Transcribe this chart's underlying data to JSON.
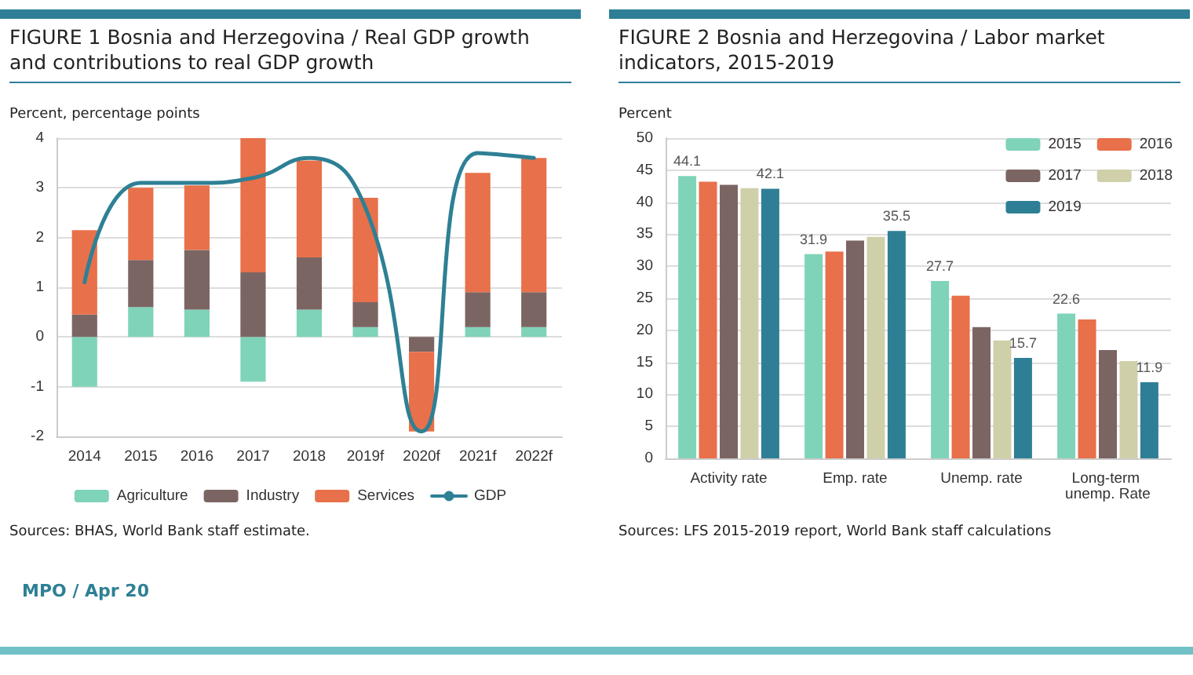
{
  "chart_data": [
    {
      "type": "bar",
      "title": "FIGURE 1  Bosnia and Herzegovina / Real GDP growth and contributions to real GDP growth",
      "ylabel": "Percent, percentage points",
      "categories": [
        "2014",
        "2015",
        "2016",
        "2017",
        "2018",
        "2019f",
        "2020f",
        "2021f",
        "2022f"
      ],
      "series": [
        {
          "name": "Agriculture",
          "color": "#7fd3b9",
          "values": [
            -1.0,
            0.6,
            0.55,
            -0.9,
            0.55,
            0.2,
            0,
            0.2,
            0.2
          ]
        },
        {
          "name": "Industry",
          "color": "#7b6563",
          "values": [
            0.45,
            0.95,
            1.2,
            1.3,
            1.05,
            0.5,
            -0.3,
            0.7,
            0.7
          ]
        },
        {
          "name": "Services",
          "color": "#e8704a",
          "values": [
            1.7,
            1.45,
            1.3,
            2.7,
            1.95,
            2.1,
            -1.6,
            2.4,
            2.7
          ]
        },
        {
          "name": "GDP",
          "type": "line",
          "color": "#2e8095",
          "values": [
            1.1,
            3.1,
            3.1,
            3.2,
            3.6,
            2.6,
            -1.9,
            3.7,
            3.6
          ]
        }
      ],
      "stacked": true,
      "marker": "none",
      "line_style": "solid",
      "ylim": [
        -2,
        4
      ],
      "yticks": [
        -2,
        -1,
        0,
        1,
        2,
        3,
        4
      ],
      "grid": "y",
      "legend": "bottom",
      "annotations": [
        "Sources: BHAS, World Bank staff estimate.",
        "MPO / Apr 20"
      ]
    },
    {
      "type": "bar",
      "title": "FIGURE 2  Bosnia and Herzegovina /  Labor market indicators, 2015-2019",
      "ylabel": "Percent",
      "categories": [
        "Activity rate",
        "Emp. rate",
        "Unemp. rate",
        "Long-term unemp. Rate"
      ],
      "series": [
        {
          "name": "2015",
          "color": "#7fd3b9",
          "values": [
            44.1,
            31.9,
            27.7,
            22.6
          ],
          "value_labels": [
            "44.1",
            "31.9",
            "27.7",
            "22.6"
          ]
        },
        {
          "name": "2016",
          "color": "#e8704a",
          "values": [
            43.2,
            32.3,
            25.4,
            21.7
          ]
        },
        {
          "name": "2017",
          "color": "#7b6563",
          "values": [
            42.7,
            34.0,
            20.5,
            16.9
          ]
        },
        {
          "name": "2018",
          "color": "#cfcfaa",
          "values": [
            42.2,
            34.6,
            18.4,
            15.2
          ]
        },
        {
          "name": "2019",
          "color": "#2e7f96",
          "values": [
            42.1,
            35.5,
            15.7,
            11.9
          ],
          "value_labels": [
            "42.1",
            "35.5",
            "15.7",
            "11.9"
          ]
        }
      ],
      "ylim": [
        0,
        50
      ],
      "yticks": [
        0,
        5,
        10,
        15,
        20,
        25,
        30,
        35,
        40,
        45,
        50
      ],
      "grid": "y",
      "legend": "top right",
      "annotations": [
        "Sources: LFS 2015-2019 report, World Bank staff calculations"
      ]
    }
  ]
}
